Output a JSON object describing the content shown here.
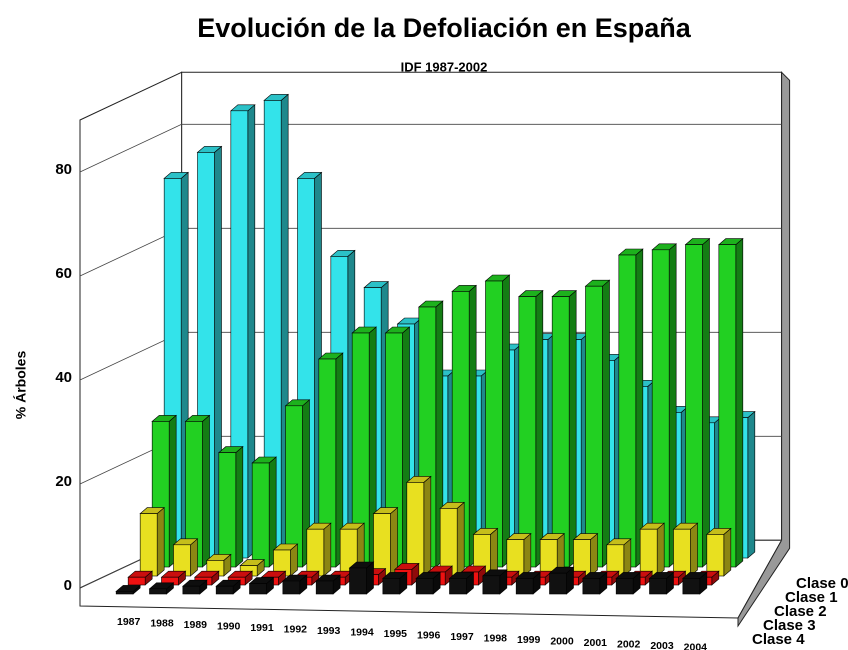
{
  "chart_data": {
    "type": "bar3d",
    "title": "Evolución de la Defoliación en España",
    "subtitle": "IDF 1987-2002",
    "y_label": "% Árboles",
    "categories": [
      "1987",
      "1988",
      "1989",
      "1990",
      "1991",
      "1992",
      "1993",
      "1994",
      "1995",
      "1996",
      "1997",
      "1998",
      "1999",
      "2000",
      "2001",
      "2002",
      "2003",
      "2004"
    ],
    "series": [
      {
        "name": "Clase 0",
        "color": "#33e3ea",
        "values": [
          73,
          78,
          86,
          88,
          73,
          58,
          52,
          45,
          35,
          35,
          40,
          42,
          42,
          38,
          33,
          28,
          26,
          27
        ]
      },
      {
        "name": "Clase 1",
        "color": "#22d022",
        "values": [
          28,
          28,
          22,
          20,
          31,
          40,
          45,
          45,
          50,
          53,
          55,
          52,
          52,
          54,
          60,
          61,
          62,
          62
        ]
      },
      {
        "name": "Clase 2",
        "color": "#e8e020",
        "values": [
          12,
          6,
          3,
          2,
          5,
          9,
          9,
          12,
          18,
          13,
          8,
          7,
          7,
          7,
          6,
          9,
          9,
          8
        ]
      },
      {
        "name": "Clase 3",
        "color": "#ee1111",
        "values": [
          1.5,
          1.5,
          1.5,
          1.5,
          1.5,
          1.5,
          1.5,
          2,
          3,
          2.5,
          2.5,
          1.5,
          1.5,
          1.5,
          1.5,
          1.5,
          1.5,
          1.5
        ]
      },
      {
        "name": "Clase 4",
        "color": "#111111",
        "values": [
          0.5,
          1,
          1.5,
          1.5,
          2,
          2.5,
          2.5,
          5,
          3,
          3,
          3,
          3.5,
          3,
          4,
          3,
          3,
          3,
          3
        ]
      }
    ],
    "ylim": [
      0,
      90
    ],
    "yticks": [
      0,
      20,
      40,
      60,
      80
    ],
    "grid": true,
    "legend": "right"
  }
}
